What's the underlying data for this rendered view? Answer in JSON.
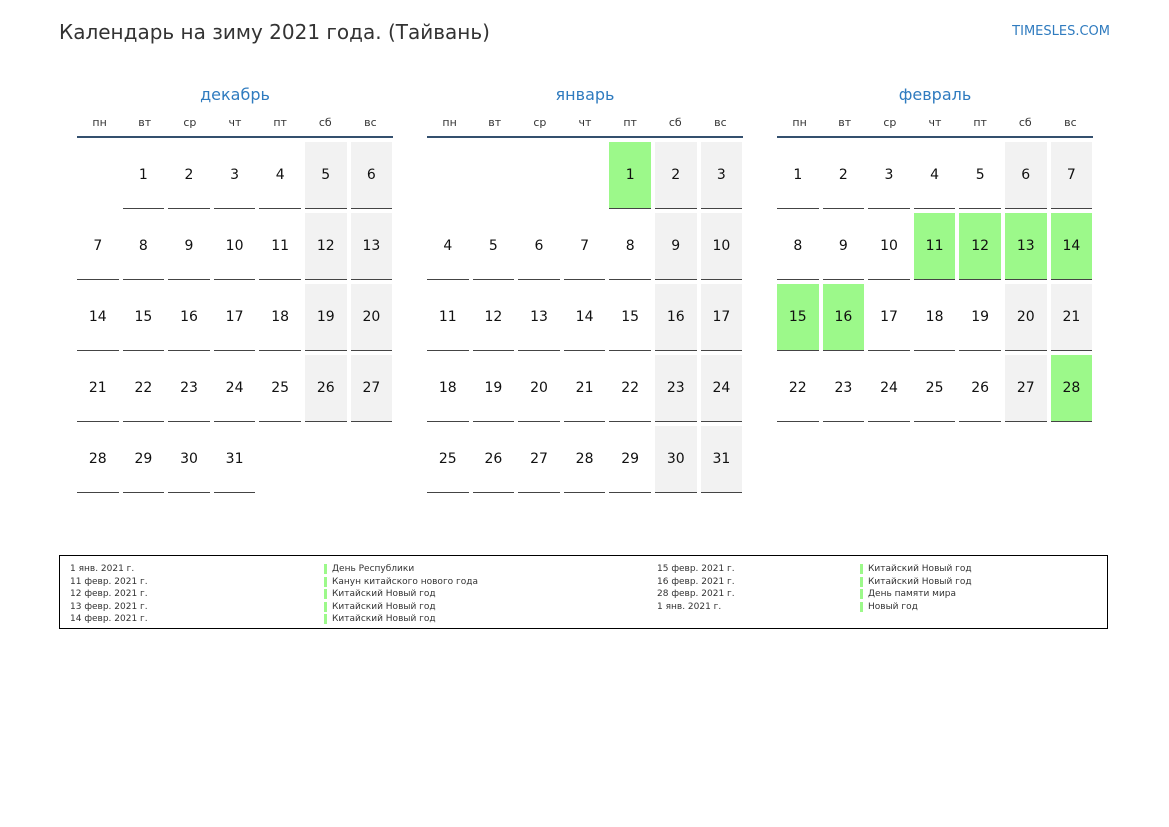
{
  "header": {
    "title": "Календарь на зиму 2021 года. (Тайвань)",
    "site": "TIMESLES.COM"
  },
  "colors": {
    "accent": "#2f7bbf",
    "holiday": "#9cf98a",
    "weekend": "#f2f2f2",
    "rule": "#34506e"
  },
  "weekdays": [
    "пн",
    "вт",
    "ср",
    "чт",
    "пт",
    "сб",
    "вс"
  ],
  "months": [
    {
      "name": "декабрь",
      "start_offset": 1,
      "days": 31,
      "holidays": []
    },
    {
      "name": "январь",
      "start_offset": 4,
      "days": 31,
      "holidays": [
        1
      ]
    },
    {
      "name": "февраль",
      "start_offset": 0,
      "days": 28,
      "holidays": [
        11,
        12,
        13,
        14,
        15,
        16,
        28
      ]
    }
  ],
  "legend": {
    "left": [
      {
        "date": "1 янв. 2021 г.",
        "name": "День Республики"
      },
      {
        "date": "11 февр. 2021 г.",
        "name": "Канун китайского нового года"
      },
      {
        "date": "12 февр. 2021 г.",
        "name": "Китайский Новый год"
      },
      {
        "date": "13 февр. 2021 г.",
        "name": "Китайский Новый год"
      },
      {
        "date": "14 февр. 2021 г.",
        "name": "Китайский Новый год"
      }
    ],
    "right": [
      {
        "date": "15 февр. 2021 г.",
        "name": "Китайский Новый год"
      },
      {
        "date": "16 февр. 2021 г.",
        "name": "Китайский Новый год"
      },
      {
        "date": "28 февр. 2021 г.",
        "name": "День памяти мира"
      },
      {
        "date": "1 янв. 2021 г.",
        "name": "Новый год"
      }
    ]
  }
}
